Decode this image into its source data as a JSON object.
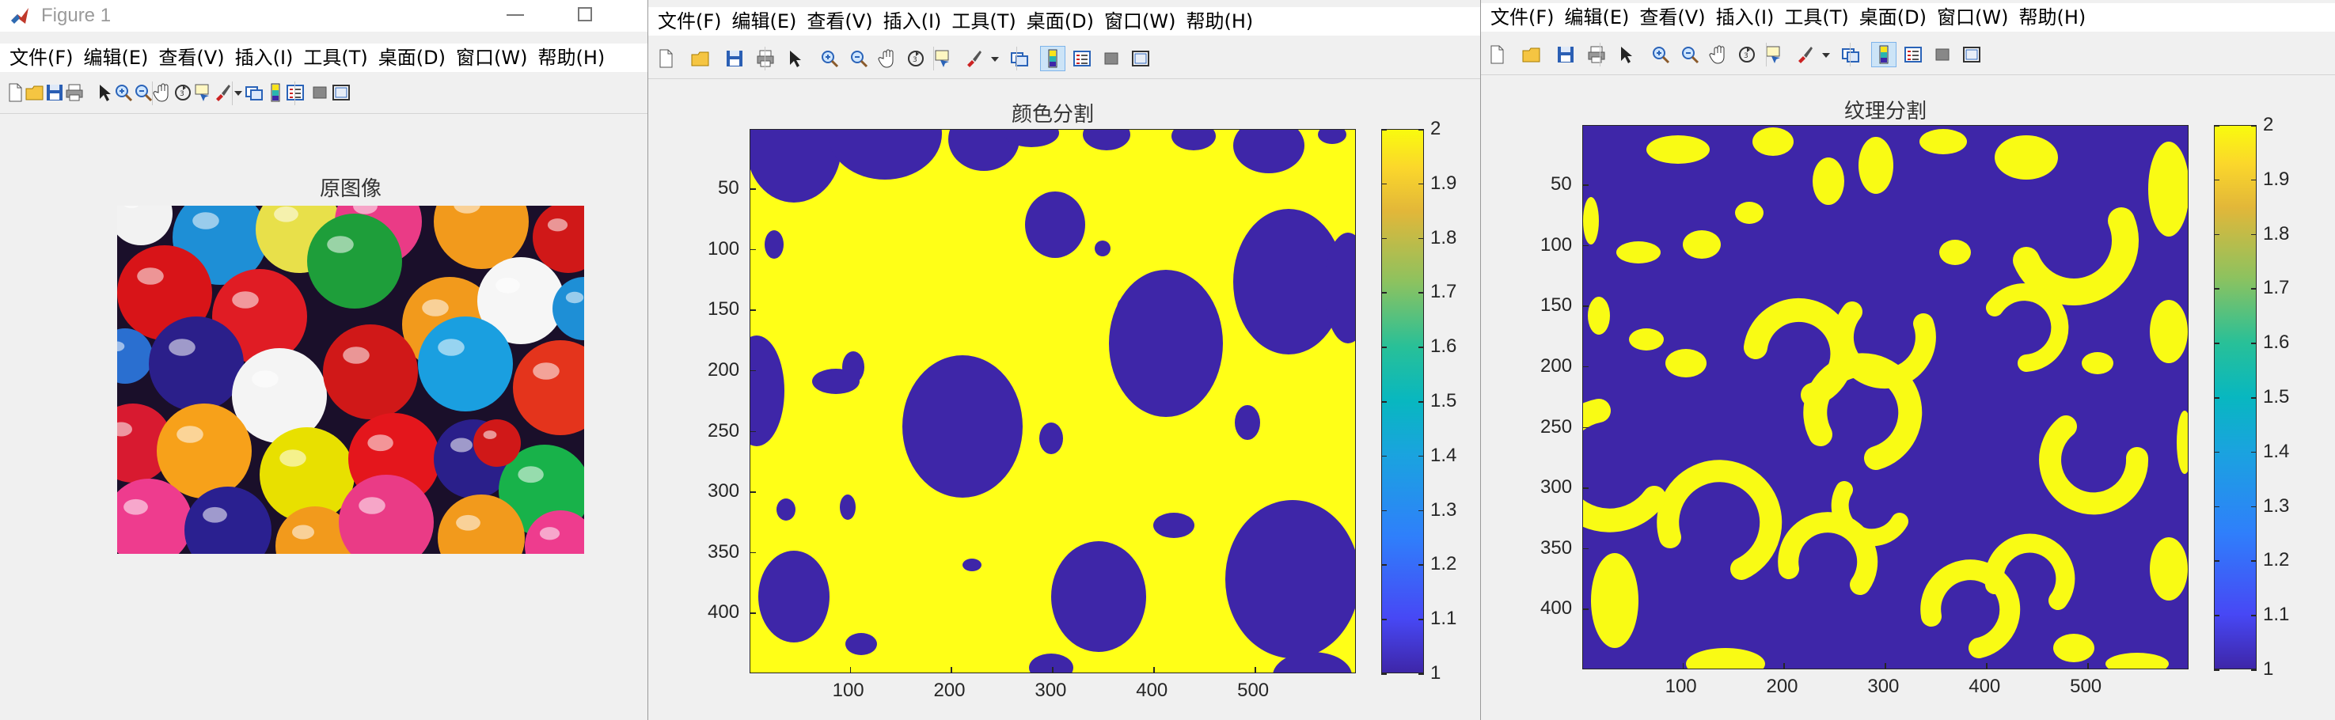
{
  "figure1": {
    "title": "Figure 1",
    "menus": [
      "文件(F)",
      "编辑(E)",
      "查看(V)",
      "插入(I)",
      "工具(T)",
      "桌面(D)",
      "窗口(W)",
      "帮助(H)"
    ],
    "axes_title": "原图像"
  },
  "figure2": {
    "menus": [
      "文件(F)",
      "编辑(E)",
      "查看(V)",
      "插入(I)",
      "工具(T)",
      "桌面(D)",
      "窗口(W)",
      "帮助(H)"
    ],
    "axes_title": "颜色分割",
    "xticks": [
      "100",
      "200",
      "300",
      "400",
      "500"
    ],
    "yticks": [
      "50",
      "100",
      "150",
      "200",
      "250",
      "300",
      "350",
      "400"
    ],
    "cbar_ticks": [
      "1",
      "1.1",
      "1.2",
      "1.3",
      "1.4",
      "1.5",
      "1.6",
      "1.7",
      "1.8",
      "1.9",
      "2"
    ]
  },
  "figure3": {
    "menus": [
      "文件(F)",
      "编辑(E)",
      "查看(V)",
      "插入(I)",
      "工具(T)",
      "桌面(D)",
      "窗口(W)",
      "帮助(H)"
    ],
    "axes_title": "纹理分割",
    "xticks": [
      "100",
      "200",
      "300",
      "400",
      "500"
    ],
    "yticks": [
      "50",
      "100",
      "150",
      "200",
      "250",
      "300",
      "350",
      "400"
    ],
    "cbar_ticks": [
      "1",
      "1.1",
      "1.2",
      "1.3",
      "1.4",
      "1.5",
      "1.6",
      "1.7",
      "1.8",
      "1.9",
      "2"
    ]
  },
  "toolbar_icons": [
    "new-file-icon",
    "open-folder-icon",
    "save-icon",
    "print-icon",
    "pointer-icon",
    "zoom-in-icon",
    "zoom-out-icon",
    "pan-hand-icon",
    "rotate-3d-icon",
    "data-cursor-icon",
    "brush-icon",
    "brush-dropdown-icon",
    "link-plot-icon",
    "colorbar-icon",
    "legend-icon",
    "hide-plot-tools-icon",
    "show-plot-tools-icon"
  ],
  "colors": {
    "segment_low": "#3e26a8",
    "segment_high": "#f9fb14",
    "axes_edge": "#262626"
  },
  "chart_data": [
    {
      "type": "heatmap",
      "title": "颜色分割",
      "xlim": [
        1,
        600
      ],
      "ylim": [
        1,
        450
      ],
      "xticks": [
        100,
        200,
        300,
        400,
        500
      ],
      "yticks": [
        50,
        100,
        150,
        200,
        250,
        300,
        350,
        400
      ],
      "clim": [
        1,
        2
      ],
      "colorbar": "parula",
      "values": "binary label map (1 = blue circles, 2 = yellow background)"
    },
    {
      "type": "heatmap",
      "title": "纹理分割",
      "xlim": [
        1,
        600
      ],
      "ylim": [
        1,
        450
      ],
      "xticks": [
        100,
        200,
        300,
        400,
        500
      ],
      "yticks": [
        50,
        100,
        150,
        200,
        250,
        300,
        350,
        400
      ],
      "clim": [
        1,
        2
      ],
      "colorbar": "parula",
      "values": "binary label map (1 = blue background, 2 = yellow ring textures)"
    }
  ]
}
